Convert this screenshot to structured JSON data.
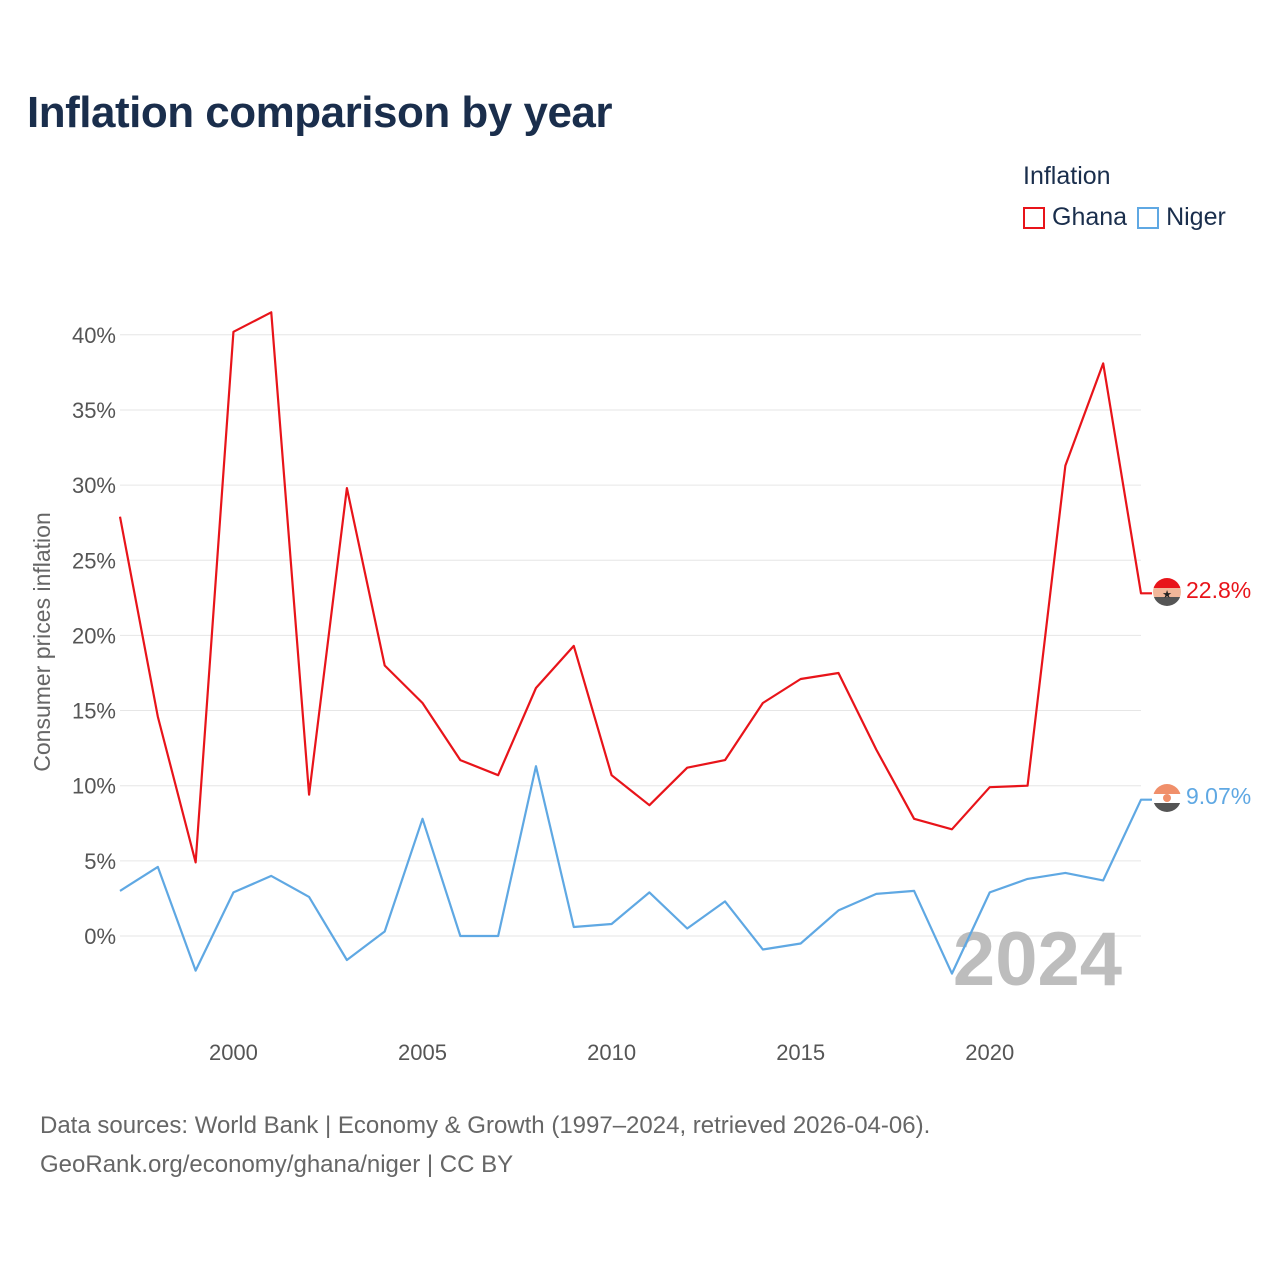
{
  "title": "Inflation comparison by year",
  "legend": {
    "title": "Inflation",
    "items": [
      {
        "label": "Ghana",
        "color": "#e8141a"
      },
      {
        "label": "Niger",
        "color": "#5fa8e3"
      }
    ]
  },
  "footer": {
    "line1": "Data sources: World Bank | Economy & Growth (1997–2024, retrieved 2026-04-06).",
    "line2": "GeoRank.org/economy/ghana/niger | CC BY"
  },
  "chart_data": {
    "type": "line",
    "title": "Inflation comparison by year",
    "xlabel": "",
    "ylabel": "Consumer prices inflation",
    "x": [
      1997,
      1998,
      1999,
      2000,
      2001,
      2002,
      2003,
      2004,
      2005,
      2006,
      2007,
      2008,
      2009,
      2010,
      2011,
      2012,
      2013,
      2014,
      2015,
      2016,
      2017,
      2018,
      2019,
      2020,
      2021,
      2022,
      2023,
      2024
    ],
    "series": [
      {
        "name": "Ghana",
        "color": "#e8141a",
        "values": [
          27.9,
          14.6,
          4.9,
          40.2,
          41.5,
          9.4,
          29.8,
          18.0,
          15.5,
          11.7,
          10.7,
          16.5,
          19.3,
          10.7,
          8.7,
          11.2,
          11.7,
          15.5,
          17.1,
          17.5,
          12.4,
          7.8,
          7.1,
          9.9,
          10.0,
          31.3,
          38.1,
          22.8
        ],
        "end_label": "22.8%"
      },
      {
        "name": "Niger",
        "color": "#5fa8e3",
        "values": [
          3.0,
          4.6,
          -2.3,
          2.9,
          4.0,
          2.6,
          -1.6,
          0.3,
          7.8,
          0.0,
          0.0,
          11.3,
          0.6,
          0.8,
          2.9,
          0.5,
          2.3,
          -0.9,
          -0.5,
          1.7,
          2.8,
          3.0,
          -2.5,
          2.9,
          3.8,
          4.2,
          3.7,
          9.07
        ],
        "end_label": "9.07%"
      }
    ],
    "xlim": [
      1997,
      2024
    ],
    "ylim": [
      -5,
      42
    ],
    "xticks": [
      2000,
      2005,
      2010,
      2015,
      2020
    ],
    "xtick_labels": [
      "2000",
      "2005",
      "2010",
      "2015",
      "2020"
    ],
    "yticks": [
      0,
      5,
      10,
      15,
      20,
      25,
      30,
      35,
      40
    ],
    "ytick_labels": [
      "0%",
      "5%",
      "10%",
      "15%",
      "20%",
      "25%",
      "30%",
      "35%",
      "40%"
    ],
    "grid": true,
    "year_marker": "2024",
    "legend_position": "top-right"
  }
}
